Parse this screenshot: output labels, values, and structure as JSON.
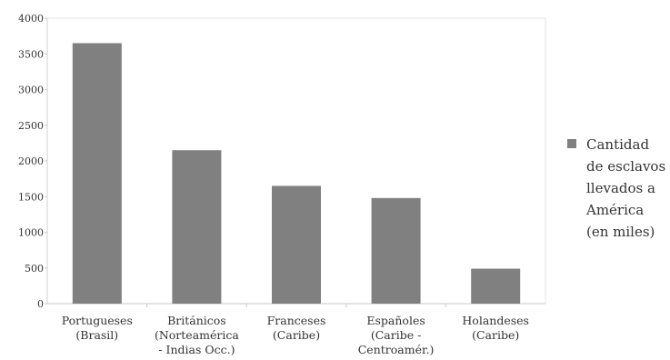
{
  "chart_data": {
    "type": "bar",
    "categories": [
      [
        "Portugueses",
        "(Brasil)"
      ],
      [
        "Británicos",
        "(Norteamérica",
        "- Indias Occ.)"
      ],
      [
        "Franceses",
        "(Caribe)"
      ],
      [
        "Españoles",
        "(Caribe -",
        "Centroamér.)"
      ],
      [
        "Holandeses",
        "(Caribe)"
      ]
    ],
    "series": [
      {
        "name": [
          "Cantidad",
          "de esclavos",
          "llevados a",
          "América",
          "(en miles)"
        ],
        "values": [
          3650,
          2150,
          1650,
          1480,
          490
        ],
        "color": "#808080"
      }
    ],
    "ylim": [
      0,
      4000
    ],
    "yticks": [
      "0",
      "500",
      "1000",
      "1500",
      "2000",
      "2500",
      "3000",
      "3500",
      "4000"
    ],
    "grid": false,
    "legend_position": "right"
  }
}
